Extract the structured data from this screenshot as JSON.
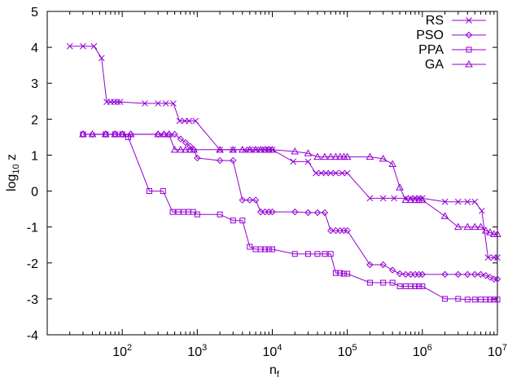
{
  "chart_data": {
    "type": "line",
    "title": "",
    "xlabel_main": "n",
    "xlabel_sub": "f",
    "ylabel_main": "log",
    "ylabel_sub": "10",
    "ylabel_tail": " z",
    "xscale": "log",
    "xlim": [
      10,
      10000000
    ],
    "ylim": [
      -4,
      5
    ],
    "legend_position": "top-right",
    "color": "#9400d3",
    "x_tick_base": "10",
    "x_ticks": [
      {
        "value": 100,
        "exp": "2"
      },
      {
        "value": 1000,
        "exp": "3"
      },
      {
        "value": 10000,
        "exp": "4"
      },
      {
        "value": 100000,
        "exp": "5"
      },
      {
        "value": 1000000,
        "exp": "6"
      },
      {
        "value": 10000000,
        "exp": "7"
      }
    ],
    "y_ticks": [
      {
        "value": -4,
        "label": "-4"
      },
      {
        "value": -3,
        "label": "-3"
      },
      {
        "value": -2,
        "label": "-2"
      },
      {
        "value": -1,
        "label": "-1"
      },
      {
        "value": 0,
        "label": "0"
      },
      {
        "value": 1,
        "label": "1"
      },
      {
        "value": 2,
        "label": "2"
      },
      {
        "value": 3,
        "label": "3"
      },
      {
        "value": 4,
        "label": "4"
      },
      {
        "value": 5,
        "label": "5"
      }
    ],
    "series": [
      {
        "name": "RS",
        "marker": "x",
        "points": [
          [
            20,
            4.03
          ],
          [
            30,
            4.03
          ],
          [
            42,
            4.03
          ],
          [
            53,
            3.7
          ],
          [
            62,
            2.48
          ],
          [
            70,
            2.48
          ],
          [
            78,
            2.48
          ],
          [
            86,
            2.48
          ],
          [
            94,
            2.48
          ],
          [
            200,
            2.44
          ],
          [
            300,
            2.44
          ],
          [
            380,
            2.44
          ],
          [
            480,
            2.44
          ],
          [
            580,
            1.95
          ],
          [
            680,
            1.95
          ],
          [
            780,
            1.95
          ],
          [
            950,
            1.95
          ],
          [
            2000,
            1.15
          ],
          [
            3000,
            1.15
          ],
          [
            4300,
            1.15
          ],
          [
            5000,
            1.15
          ],
          [
            6000,
            1.15
          ],
          [
            7000,
            1.15
          ],
          [
            8000,
            1.15
          ],
          [
            9000,
            1.15
          ],
          [
            10000,
            1.15
          ],
          [
            19000,
            0.82
          ],
          [
            30000,
            0.82
          ],
          [
            38000,
            0.5
          ],
          [
            45000,
            0.5
          ],
          [
            52000,
            0.5
          ],
          [
            60000,
            0.5
          ],
          [
            70000,
            0.5
          ],
          [
            85000,
            0.5
          ],
          [
            100000,
            0.5
          ],
          [
            200000,
            -0.2
          ],
          [
            300000,
            -0.2
          ],
          [
            420000,
            -0.2
          ],
          [
            600000,
            -0.2
          ],
          [
            700000,
            -0.2
          ],
          [
            800000,
            -0.2
          ],
          [
            900000,
            -0.2
          ],
          [
            1000000,
            -0.2
          ],
          [
            2000000,
            -0.3
          ],
          [
            3000000,
            -0.3
          ],
          [
            4000000,
            -0.3
          ],
          [
            5000000,
            -0.3
          ],
          [
            6200000,
            -0.55
          ],
          [
            7500000,
            -1.85
          ],
          [
            9000000,
            -1.85
          ],
          [
            10000000,
            -1.85
          ]
        ]
      },
      {
        "name": "PSO",
        "marker": "diamond",
        "points": [
          [
            30,
            1.58
          ],
          [
            40,
            1.58
          ],
          [
            60,
            1.58
          ],
          [
            80,
            1.58
          ],
          [
            100,
            1.58
          ],
          [
            130,
            1.58
          ],
          [
            300,
            1.58
          ],
          [
            360,
            1.58
          ],
          [
            420,
            1.58
          ],
          [
            500,
            1.58
          ],
          [
            600,
            1.45
          ],
          [
            700,
            1.35
          ],
          [
            800,
            1.25
          ],
          [
            900,
            1.15
          ],
          [
            1000,
            0.92
          ],
          [
            2000,
            0.85
          ],
          [
            3000,
            0.85
          ],
          [
            4000,
            -0.25
          ],
          [
            5000,
            -0.25
          ],
          [
            6000,
            -0.25
          ],
          [
            7000,
            -0.58
          ],
          [
            8000,
            -0.58
          ],
          [
            9000,
            -0.58
          ],
          [
            10000,
            -0.58
          ],
          [
            20000,
            -0.58
          ],
          [
            30000,
            -0.6
          ],
          [
            40000,
            -0.6
          ],
          [
            50000,
            -0.6
          ],
          [
            60000,
            -1.1
          ],
          [
            70000,
            -1.1
          ],
          [
            80000,
            -1.1
          ],
          [
            90000,
            -1.1
          ],
          [
            100000,
            -1.1
          ],
          [
            200000,
            -2.05
          ],
          [
            300000,
            -2.05
          ],
          [
            400000,
            -2.2
          ],
          [
            500000,
            -2.3
          ],
          [
            600000,
            -2.32
          ],
          [
            700000,
            -2.32
          ],
          [
            800000,
            -2.32
          ],
          [
            900000,
            -2.32
          ],
          [
            1000000,
            -2.32
          ],
          [
            2000000,
            -2.32
          ],
          [
            3000000,
            -2.32
          ],
          [
            4000000,
            -2.32
          ],
          [
            5000000,
            -2.32
          ],
          [
            6000000,
            -2.32
          ],
          [
            7000000,
            -2.35
          ],
          [
            8000000,
            -2.4
          ],
          [
            9000000,
            -2.45
          ],
          [
            10000000,
            -2.45
          ]
        ]
      },
      {
        "name": "PPA",
        "marker": "square",
        "points": [
          [
            30,
            1.58
          ],
          [
            60,
            1.58
          ],
          [
            80,
            1.58
          ],
          [
            100,
            1.58
          ],
          [
            120,
            1.5
          ],
          [
            230,
            0.0
          ],
          [
            350,
            0.0
          ],
          [
            470,
            -0.58
          ],
          [
            560,
            -0.58
          ],
          [
            660,
            -0.58
          ],
          [
            760,
            -0.58
          ],
          [
            880,
            -0.58
          ],
          [
            1000,
            -0.65
          ],
          [
            2000,
            -0.65
          ],
          [
            3000,
            -0.82
          ],
          [
            4000,
            -0.82
          ],
          [
            5000,
            -1.55
          ],
          [
            6000,
            -1.62
          ],
          [
            7000,
            -1.62
          ],
          [
            8000,
            -1.62
          ],
          [
            9000,
            -1.62
          ],
          [
            10000,
            -1.62
          ],
          [
            20000,
            -1.75
          ],
          [
            30000,
            -1.75
          ],
          [
            40000,
            -1.75
          ],
          [
            50000,
            -1.75
          ],
          [
            60000,
            -1.75
          ],
          [
            70000,
            -2.28
          ],
          [
            80000,
            -2.28
          ],
          [
            90000,
            -2.3
          ],
          [
            100000,
            -2.3
          ],
          [
            200000,
            -2.55
          ],
          [
            300000,
            -2.55
          ],
          [
            400000,
            -2.55
          ],
          [
            500000,
            -2.65
          ],
          [
            600000,
            -2.65
          ],
          [
            700000,
            -2.65
          ],
          [
            800000,
            -2.65
          ],
          [
            900000,
            -2.65
          ],
          [
            1000000,
            -2.65
          ],
          [
            2000000,
            -3.0
          ],
          [
            3000000,
            -3.0
          ],
          [
            4000000,
            -3.02
          ],
          [
            5000000,
            -3.02
          ],
          [
            6000000,
            -3.02
          ],
          [
            7000000,
            -3.02
          ],
          [
            8000000,
            -3.02
          ],
          [
            9000000,
            -3.02
          ],
          [
            10000000,
            -3.02
          ]
        ]
      },
      {
        "name": "GA",
        "marker": "triangle",
        "points": [
          [
            30,
            1.58
          ],
          [
            40,
            1.58
          ],
          [
            60,
            1.58
          ],
          [
            80,
            1.58
          ],
          [
            100,
            1.58
          ],
          [
            130,
            1.58
          ],
          [
            300,
            1.58
          ],
          [
            360,
            1.58
          ],
          [
            420,
            1.58
          ],
          [
            500,
            1.15
          ],
          [
            600,
            1.15
          ],
          [
            700,
            1.15
          ],
          [
            800,
            1.15
          ],
          [
            900,
            1.15
          ],
          [
            2000,
            1.15
          ],
          [
            3000,
            1.15
          ],
          [
            4000,
            1.15
          ],
          [
            5000,
            1.15
          ],
          [
            6000,
            1.15
          ],
          [
            7000,
            1.15
          ],
          [
            8000,
            1.15
          ],
          [
            9000,
            1.15
          ],
          [
            10000,
            1.15
          ],
          [
            20000,
            1.1
          ],
          [
            30000,
            1.05
          ],
          [
            40000,
            0.95
          ],
          [
            50000,
            0.95
          ],
          [
            60000,
            0.95
          ],
          [
            70000,
            0.95
          ],
          [
            80000,
            0.95
          ],
          [
            90000,
            0.95
          ],
          [
            100000,
            0.95
          ],
          [
            200000,
            0.95
          ],
          [
            300000,
            0.9
          ],
          [
            400000,
            0.75
          ],
          [
            500000,
            0.1
          ],
          [
            600000,
            -0.25
          ],
          [
            700000,
            -0.25
          ],
          [
            800000,
            -0.25
          ],
          [
            900000,
            -0.25
          ],
          [
            1000000,
            -0.25
          ],
          [
            2000000,
            -0.7
          ],
          [
            3000000,
            -1.0
          ],
          [
            4000000,
            -1.0
          ],
          [
            5000000,
            -1.0
          ],
          [
            6000000,
            -1.0
          ],
          [
            7000000,
            -1.1
          ],
          [
            8000000,
            -1.15
          ],
          [
            9000000,
            -1.2
          ],
          [
            10000000,
            -1.2
          ]
        ]
      }
    ]
  }
}
